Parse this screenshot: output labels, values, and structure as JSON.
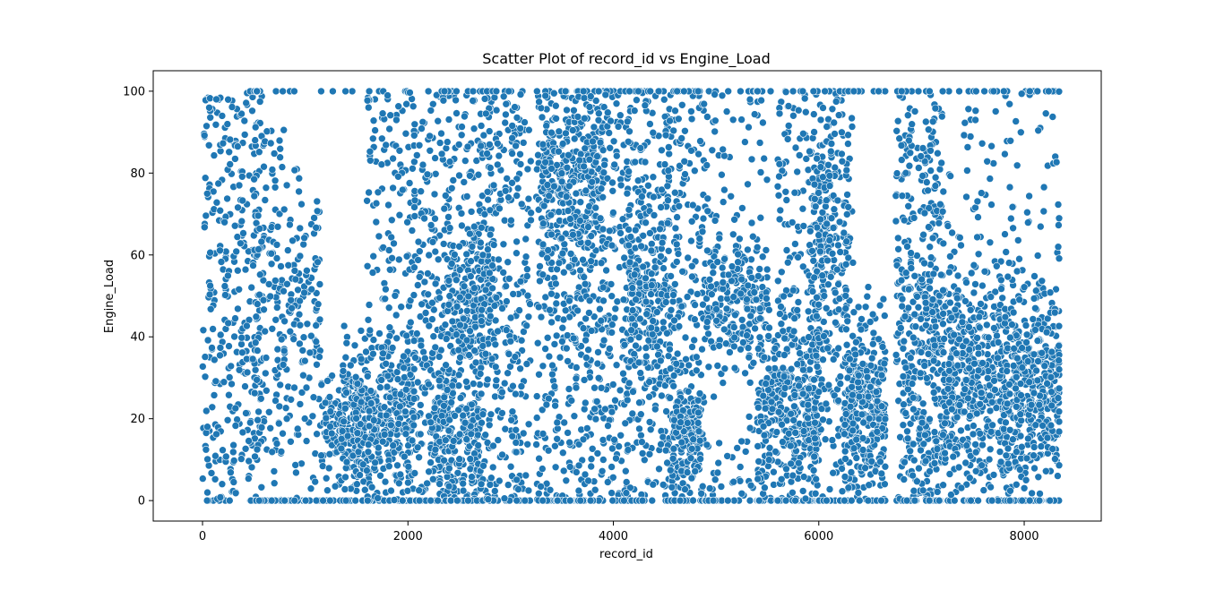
{
  "chart_data": {
    "type": "scatter",
    "title": "Scatter Plot of record_id vs Engine_Load",
    "xlabel": "record_id",
    "ylabel": "Engine_Load",
    "xlim": [
      -480,
      8750
    ],
    "ylim": [
      -5,
      105
    ],
    "x_ticks": [
      0,
      2000,
      4000,
      6000,
      8000
    ],
    "x_tick_labels": [
      "0",
      "2000",
      "4000",
      "6000",
      "8000"
    ],
    "y_ticks": [
      0,
      20,
      40,
      60,
      80,
      100
    ],
    "y_tick_labels": [
      "0",
      "20",
      "40",
      "60",
      "80",
      "100"
    ],
    "grid": false,
    "marker_color": "#1f77b4",
    "marker_edge_color": "#ffffff",
    "x_max_record": 8340,
    "segments": [
      {
        "x0": 0,
        "x1": 600,
        "dist": "uniform",
        "n": 340
      },
      {
        "x0": 500,
        "x1": 1150,
        "dist": "mid",
        "n": 300,
        "mean": 45,
        "sd": 22
      },
      {
        "x0": 1150,
        "x1": 1600,
        "dist": "low",
        "n": 150,
        "mean": 18,
        "sd": 7
      },
      {
        "x0": 1350,
        "x1": 2050,
        "dist": "low",
        "n": 380,
        "mean": 20,
        "sd": 9
      },
      {
        "x0": 1600,
        "x1": 2050,
        "dist": "uniform",
        "n": 200
      },
      {
        "x0": 2050,
        "x1": 2700,
        "dist": "uniform",
        "n": 380
      },
      {
        "x0": 2200,
        "x1": 2700,
        "dist": "low",
        "n": 200,
        "mean": 17,
        "sd": 8
      },
      {
        "x0": 2350,
        "x1": 2800,
        "dist": "mid",
        "n": 180,
        "mean": 48,
        "sd": 8
      },
      {
        "x0": 2700,
        "x1": 3200,
        "dist": "uniform",
        "n": 360
      },
      {
        "x0": 3250,
        "x1": 3700,
        "dist": "uniform",
        "n": 280
      },
      {
        "x0": 3300,
        "x1": 3900,
        "dist": "mid",
        "n": 300,
        "mean": 75,
        "sd": 12
      },
      {
        "x0": 3700,
        "x1": 4150,
        "dist": "uniform",
        "n": 280
      },
      {
        "x0": 4100,
        "x1": 4550,
        "dist": "uniform",
        "n": 260
      },
      {
        "x0": 4150,
        "x1": 4500,
        "dist": "mid",
        "n": 150,
        "mean": 50,
        "sd": 8
      },
      {
        "x0": 4500,
        "x1": 4900,
        "dist": "uniform",
        "n": 260
      },
      {
        "x0": 4550,
        "x1": 4850,
        "dist": "low",
        "n": 150,
        "mean": 18,
        "sd": 6
      },
      {
        "x0": 4900,
        "x1": 5500,
        "dist": "mid",
        "n": 200,
        "mean": 50,
        "sd": 8
      },
      {
        "x0": 4900,
        "x1": 5500,
        "dist": "uniform",
        "n": 140
      },
      {
        "x0": 5400,
        "x1": 6000,
        "dist": "low",
        "n": 350,
        "mean": 22,
        "sd": 12
      },
      {
        "x0": 5600,
        "x1": 6050,
        "dist": "uniform",
        "n": 180
      },
      {
        "x0": 5900,
        "x1": 6300,
        "dist": "mid",
        "n": 180,
        "mean": 60,
        "sd": 15
      },
      {
        "x0": 5950,
        "x1": 6350,
        "dist": "uniform",
        "n": 180
      },
      {
        "x0": 6250,
        "x1": 6650,
        "dist": "low",
        "n": 350,
        "mean": 22,
        "sd": 10
      },
      {
        "x0": 6750,
        "x1": 7200,
        "dist": "uniform",
        "n": 300
      },
      {
        "x0": 6800,
        "x1": 7400,
        "dist": "mid",
        "n": 250,
        "mean": 40,
        "sd": 16
      },
      {
        "x0": 7200,
        "x1": 7800,
        "dist": "low",
        "n": 400,
        "mean": 28,
        "sd": 12
      },
      {
        "x0": 7400,
        "x1": 7900,
        "dist": "uniform",
        "n": 100
      },
      {
        "x0": 7800,
        "x1": 8350,
        "dist": "low",
        "n": 400,
        "mean": 28,
        "sd": 13
      },
      {
        "x0": 7850,
        "x1": 8350,
        "dist": "uniform",
        "n": 90
      }
    ]
  }
}
